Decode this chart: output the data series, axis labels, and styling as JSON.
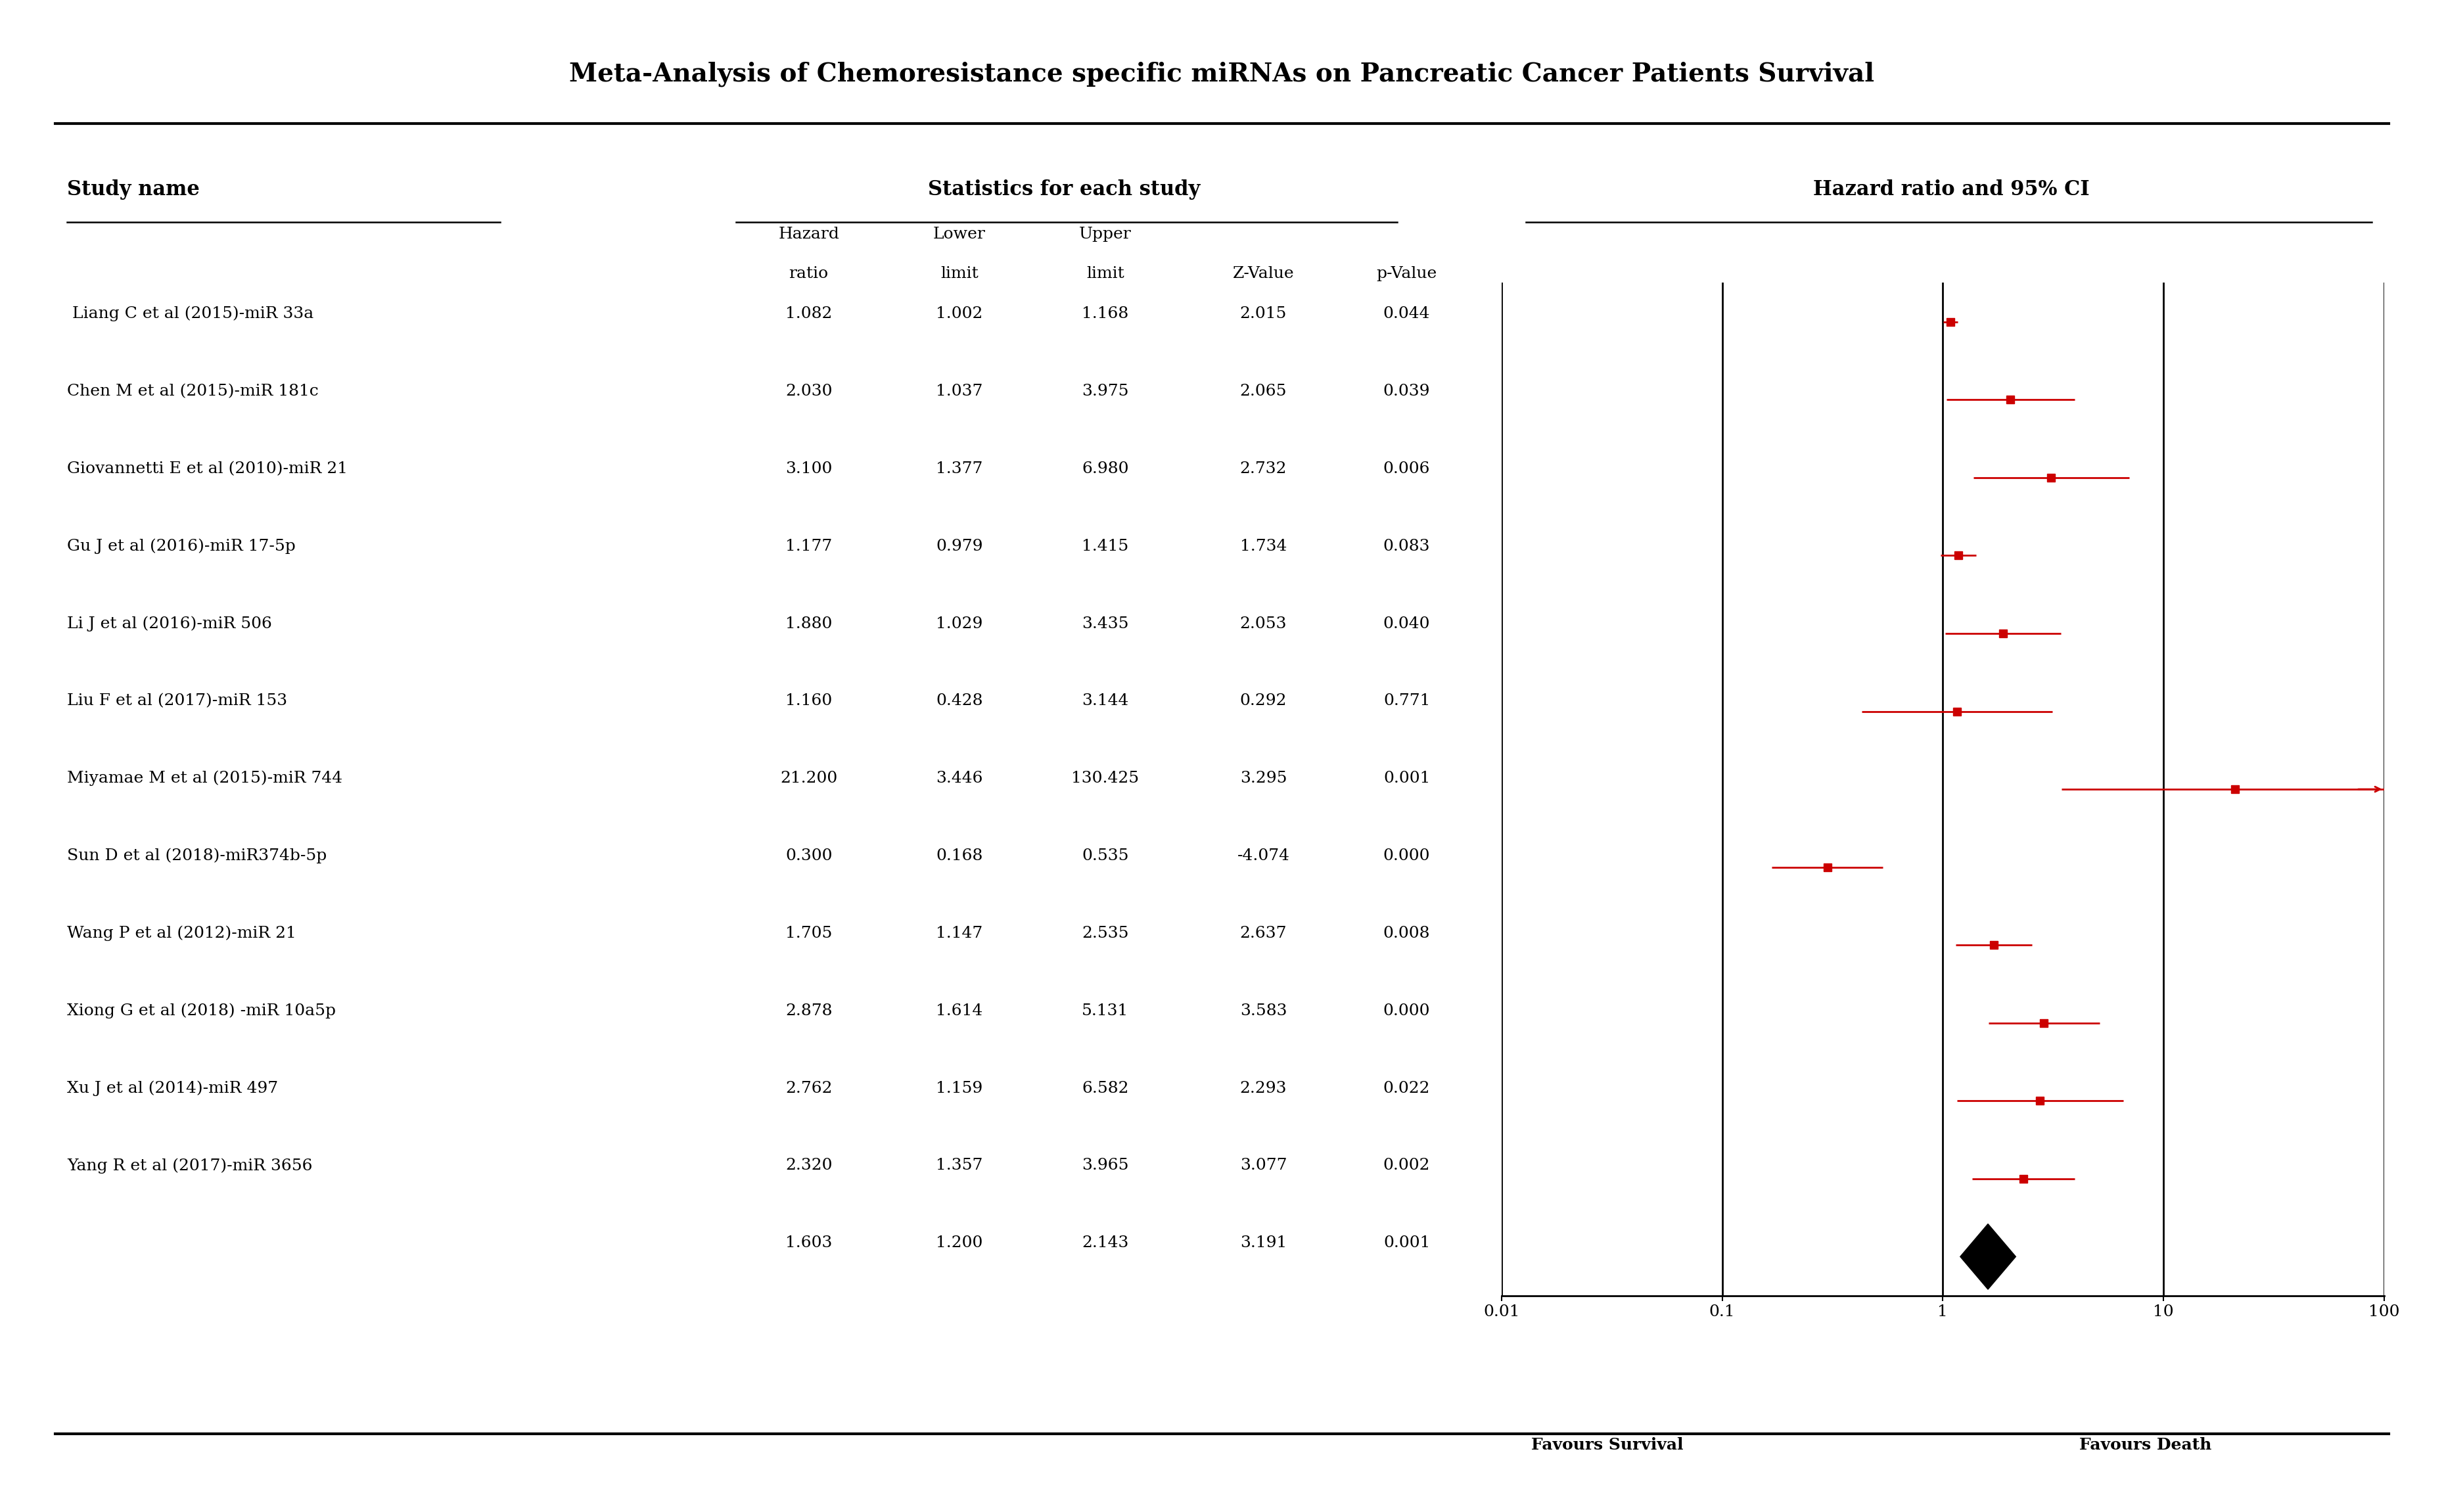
{
  "title": "Meta-Analysis of Chemoresistance specific miRNAs on Pancreatic Cancer Patients Survival",
  "col_header_left": "Study name",
  "col_header_stats": "Statistics for each study",
  "col_header_forest": "Hazard ratio and 95% CI",
  "studies": [
    " Liang C et al (2015)-miR 33a",
    "Chen M et al (2015)-miR 181c",
    "Giovannetti E et al (2010)-miR 21",
    "Gu J et al (2016)-miR 17-5p",
    "Li J et al (2016)-miR 506",
    "Liu F et al (2017)-miR 153",
    "Miyamae M et al (2015)-miR 744",
    "Sun D et al (2018)-miR374b-5p",
    "Wang P et al (2012)-miR 21",
    "Xiong G et al (2018) -miR 10a5p",
    "Xu J et al (2014)-miR 497",
    "Yang R et al (2017)-miR 3656",
    ""
  ],
  "hazard_ratios": [
    1.082,
    2.03,
    3.1,
    1.177,
    1.88,
    1.16,
    21.2,
    0.3,
    1.705,
    2.878,
    2.762,
    2.32,
    1.603
  ],
  "lower_limits": [
    1.002,
    1.037,
    1.377,
    0.979,
    1.029,
    0.428,
    3.446,
    0.168,
    1.147,
    1.614,
    1.159,
    1.357,
    1.2
  ],
  "upper_limits": [
    1.168,
    3.975,
    6.98,
    1.415,
    3.435,
    3.144,
    130.425,
    0.535,
    2.535,
    5.131,
    6.582,
    3.965,
    2.143
  ],
  "z_values": [
    2.015,
    2.065,
    2.732,
    1.734,
    2.053,
    0.292,
    3.295,
    -4.074,
    2.637,
    3.583,
    2.293,
    3.077,
    3.191
  ],
  "p_values": [
    0.044,
    0.039,
    0.006,
    0.083,
    0.04,
    0.771,
    0.001,
    0.0,
    0.008,
    0.0,
    0.022,
    0.002,
    0.001
  ],
  "is_summary": [
    false,
    false,
    false,
    false,
    false,
    false,
    false,
    false,
    false,
    false,
    false,
    false,
    true
  ],
  "favours_left": "Favours Survival",
  "favours_right": "Favours Death",
  "marker_color": "#CC0000",
  "summary_color": "#000000",
  "background_color": "#FFFFFF",
  "title_fontsize": 28,
  "header_fontsize": 22,
  "subheader_fontsize": 18,
  "data_fontsize": 18,
  "tick_fontsize": 18,
  "favours_fontsize": 18
}
